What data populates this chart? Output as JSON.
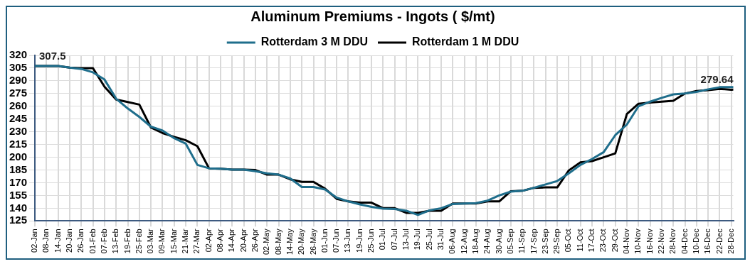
{
  "chart_data": {
    "type": "line",
    "title": "Aluminum Premiums - Ingots ( $/mt)",
    "x": [
      "--01-02",
      "--01-08",
      "--01-14",
      "--01-20",
      "--01-26",
      "--02-01",
      "--02-07",
      "--02-13",
      "--02-19",
      "--02-25",
      "--03-03",
      "--03-09",
      "--03-15",
      "--03-21",
      "--03-27",
      "--04-02",
      "--04-08",
      "--04-14",
      "--04-20",
      "--04-26",
      "--05-02",
      "--05-08",
      "--05-14",
      "--05-20",
      "--05-26",
      "--06-01",
      "--06-07",
      "--06-13",
      "--06-19",
      "--06-25",
      "--07-01",
      "--07-07",
      "--07-13",
      "--07-19",
      "--07-25",
      "--07-31",
      "--08-06",
      "--08-12",
      "--08-18",
      "--08-24",
      "--08-30",
      "--09-05",
      "--09-11",
      "--09-17",
      "--09-23",
      "--09-29",
      "--10-05",
      "--10-11",
      "--10-17",
      "--10-23",
      "--10-29",
      "--11-04",
      "--11-10",
      "--11-16",
      "--11-22",
      "--11-28",
      "--12-04",
      "--12-10",
      "--12-16",
      "--12-22",
      "--12-28",
      "--12-29"
    ],
    "series": [
      {
        "name": "Rotterdam 3 M DDU",
        "color": "#1f6e8c",
        "values": [
          307.5,
          307.5,
          307.5,
          305.5,
          304,
          300,
          291.5,
          269,
          257.5,
          247.5,
          236,
          231.5,
          222.5,
          216,
          191,
          187,
          186.5,
          185.5,
          185.5,
          183.5,
          181,
          179.5,
          175,
          165,
          165,
          162,
          152.5,
          148,
          144.5,
          141.5,
          139.5,
          139,
          137,
          132,
          137.5,
          140,
          145,
          145.5,
          146,
          149,
          155,
          159.5,
          160.5,
          164,
          168,
          172,
          181,
          191,
          198,
          206,
          226,
          238.5,
          260,
          265.5,
          270,
          274,
          275,
          277,
          280,
          282.5,
          282.5,
          282.5
        ]
      },
      {
        "name": "Rotterdam 1 M DDU",
        "color": "#000000",
        "values": [
          307.5,
          307.5,
          307.5,
          305.5,
          305,
          305,
          283,
          268,
          265,
          262,
          235,
          228.5,
          224,
          220,
          213,
          187,
          186.5,
          185.5,
          185.5,
          185,
          179.5,
          179.5,
          174,
          171,
          171,
          163,
          151,
          148,
          146.5,
          146.5,
          140,
          140,
          134.5,
          134.5,
          137,
          137,
          145.5,
          145.5,
          145.5,
          148,
          148,
          160,
          160.5,
          164,
          164.5,
          164.5,
          184.5,
          194,
          195.5,
          200,
          204.5,
          251,
          263,
          264.5,
          265.5,
          266.5,
          275,
          278,
          279,
          280.5,
          279.5,
          279.64
        ]
      }
    ],
    "xlim": [
      "--01-02",
      "--12-29"
    ],
    "xticks": [
      {
        "value": "--01-02",
        "label": "02-Jan"
      },
      {
        "value": "--01-08",
        "label": "08-Jan"
      },
      {
        "value": "--01-14",
        "label": "14-Jan"
      },
      {
        "value": "--01-20",
        "label": "20-Jan"
      },
      {
        "value": "--01-26",
        "label": "26-Jan"
      },
      {
        "value": "--02-01",
        "label": "01-Feb"
      },
      {
        "value": "--02-07",
        "label": "07-Feb"
      },
      {
        "value": "--02-13",
        "label": "13-Feb"
      },
      {
        "value": "--02-19",
        "label": "19-Feb"
      },
      {
        "value": "--02-25",
        "label": "25-Feb"
      },
      {
        "value": "--03-03",
        "label": "03-Mar"
      },
      {
        "value": "--03-09",
        "label": "09-Mar"
      },
      {
        "value": "--03-15",
        "label": "15-Mar"
      },
      {
        "value": "--03-21",
        "label": "21-Mar"
      },
      {
        "value": "--03-27",
        "label": "27-Mar"
      },
      {
        "value": "--04-02",
        "label": "02-Apr"
      },
      {
        "value": "--04-08",
        "label": "08-Apr"
      },
      {
        "value": "--04-14",
        "label": "14-Apr"
      },
      {
        "value": "--04-20",
        "label": "20-Apr"
      },
      {
        "value": "--04-26",
        "label": "26-Apr"
      },
      {
        "value": "--05-02",
        "label": "02-May"
      },
      {
        "value": "--05-08",
        "label": "08-May"
      },
      {
        "value": "--05-14",
        "label": "14-May"
      },
      {
        "value": "--05-20",
        "label": "20-May"
      },
      {
        "value": "--05-26",
        "label": "26-May"
      },
      {
        "value": "--06-01",
        "label": "01-Jun"
      },
      {
        "value": "--06-07",
        "label": "07-Jun"
      },
      {
        "value": "--06-13",
        "label": "13-Jun"
      },
      {
        "value": "--06-19",
        "label": "19-Jun"
      },
      {
        "value": "--06-25",
        "label": "25-Jun"
      },
      {
        "value": "--07-01",
        "label": "01-Jul"
      },
      {
        "value": "--07-07",
        "label": "07-Jul"
      },
      {
        "value": "--07-13",
        "label": "13-Jul"
      },
      {
        "value": "--07-19",
        "label": "19-Jul"
      },
      {
        "value": "--07-25",
        "label": "25-Jul"
      },
      {
        "value": "--07-31",
        "label": "31-Jul"
      },
      {
        "value": "--08-06",
        "label": "06-Aug"
      },
      {
        "value": "--08-12",
        "label": "12-Aug"
      },
      {
        "value": "--08-18",
        "label": "18-Aug"
      },
      {
        "value": "--08-24",
        "label": "24-Aug"
      },
      {
        "value": "--08-30",
        "label": "30-Aug"
      },
      {
        "value": "--09-05",
        "label": "05-Sep"
      },
      {
        "value": "--09-11",
        "label": "11-Sep"
      },
      {
        "value": "--09-17",
        "label": "17-Sep"
      },
      {
        "value": "--09-23",
        "label": "23-Sep"
      },
      {
        "value": "--09-29",
        "label": "29-Sep"
      },
      {
        "value": "--10-05",
        "label": "05-Oct"
      },
      {
        "value": "--10-11",
        "label": "11-Oct"
      },
      {
        "value": "--10-17",
        "label": "17-Oct"
      },
      {
        "value": "--10-23",
        "label": "23-Oct"
      },
      {
        "value": "--10-29",
        "label": "29-Oct"
      },
      {
        "value": "--11-04",
        "label": "04-Nov"
      },
      {
        "value": "--11-10",
        "label": "10-Nov"
      },
      {
        "value": "--11-16",
        "label": "16-Nov"
      },
      {
        "value": "--11-22",
        "label": "22-Nov"
      },
      {
        "value": "--11-28",
        "label": "28-Nov"
      },
      {
        "value": "--12-04",
        "label": "04-Dec"
      },
      {
        "value": "--12-10",
        "label": "10-Dec"
      },
      {
        "value": "--12-16",
        "label": "16-Dec"
      },
      {
        "value": "--12-22",
        "label": "22-Dec"
      },
      {
        "value": "--12-28",
        "label": "28-Dec"
      }
    ],
    "ylim": [
      125,
      320
    ],
    "yticks": [
      125,
      140,
      155,
      170,
      185,
      200,
      215,
      230,
      245,
      260,
      275,
      290,
      305,
      320
    ],
    "annotations": [
      {
        "text": "307.5",
        "x": "--01-02",
        "y": 307.5
      },
      {
        "text": "279.64",
        "x": "--12-29",
        "y": 279.64
      }
    ],
    "grid": true,
    "legend": "top",
    "marker": "none",
    "line_style": "solid"
  }
}
